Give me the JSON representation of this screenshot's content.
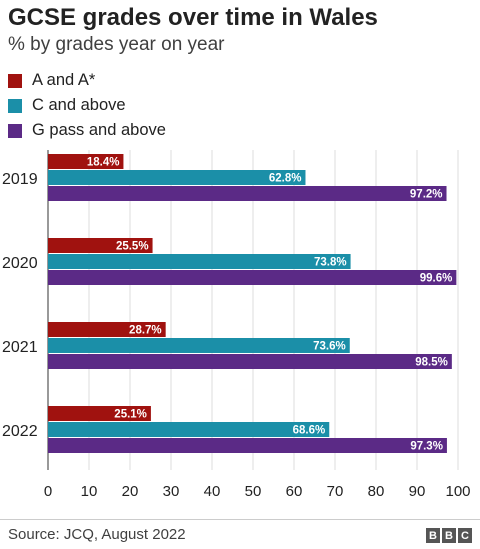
{
  "chart_data": {
    "type": "bar",
    "orientation": "horizontal",
    "title": "GCSE grades over time in Wales",
    "subtitle": "% by grades year on year",
    "categories": [
      "2019",
      "2020",
      "2021",
      "2022"
    ],
    "series": [
      {
        "name": "A and A*",
        "color": "#a0120f",
        "values": [
          18.4,
          25.5,
          28.7,
          25.1
        ],
        "labels": [
          "18.4%",
          "25.5%",
          "28.7%",
          "25.1%"
        ]
      },
      {
        "name": "C and above",
        "color": "#1b8fa8",
        "values": [
          62.8,
          73.8,
          73.6,
          68.6
        ],
        "labels": [
          "62.8%",
          "73.8%",
          "73.6%",
          "68.6%"
        ]
      },
      {
        "name": "G pass and above",
        "color": "#5b2a86",
        "values": [
          97.2,
          99.6,
          98.5,
          97.3
        ],
        "labels": [
          "97.2%",
          "99.6%",
          "98.5%",
          "97.3%"
        ]
      }
    ],
    "xlim": [
      0,
      100
    ],
    "xticks": [
      "0",
      "10",
      "20",
      "30",
      "40",
      "50",
      "60",
      "70",
      "80",
      "90",
      "100"
    ],
    "grid": true,
    "legend_position": "top-left"
  },
  "footer": {
    "source": "Source: JCQ, August 2022",
    "logo": [
      "B",
      "B",
      "C"
    ]
  }
}
